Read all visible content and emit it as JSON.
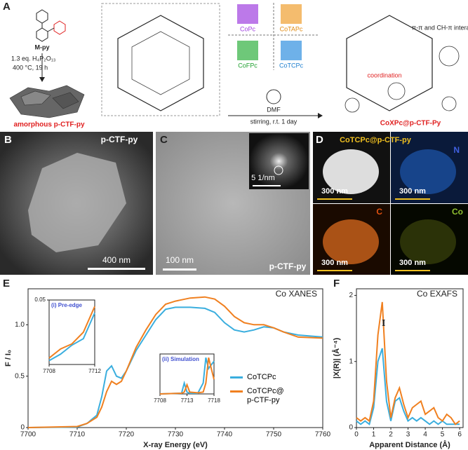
{
  "panel_a": {
    "letter": "A",
    "monomer": "M-py",
    "reagent": "1.3 eq. H₄P₂O₁₃",
    "condition": "400 °C, 19 h",
    "product": "amorphous p-CTF-py",
    "phthalocyanines": [
      "CoPc",
      "CoTAPc",
      "CoFPc",
      "CoTCPc"
    ],
    "solvent": "DMF",
    "stirring": "stirring, r.t. 1 day",
    "interactions": "π-π and CH-π interactions",
    "coordination": "coordination",
    "final": "CoXPc@p-CTF-Py"
  },
  "panel_b": {
    "letter": "B",
    "label": "p-CTF-py",
    "scale": "400 nm"
  },
  "panel_c": {
    "letter": "C",
    "scale": "100 nm",
    "fft_scale": "5 1/nm",
    "label": "p-CTF-py"
  },
  "panel_d": {
    "letter": "D",
    "title": "CoTCPc@p-CTF-py",
    "elements": [
      "N",
      "C",
      "Co"
    ],
    "scales": [
      "300 nm",
      "300 nm",
      "300 nm",
      "300 nm"
    ]
  },
  "panel_e": {
    "letter": "E"
  },
  "panel_f": {
    "letter": "F"
  },
  "chart_data": [
    {
      "type": "line",
      "title": "Co XANES",
      "x_label": "X-ray Energy (eV)",
      "y_label": "F / I₀",
      "x": [
        7700,
        7710,
        7712,
        7714,
        7715,
        7716,
        7717,
        7718,
        7719,
        7720,
        7722,
        7724,
        7726,
        7728,
        7730,
        7733,
        7736,
        7738,
        7740,
        7742,
        7744,
        7746,
        7748,
        7750,
        7752,
        7755,
        7760
      ],
      "series": [
        {
          "name": "CoTCPc",
          "color": "#3aaede",
          "values": [
            0,
            0.005,
            0.04,
            0.12,
            0.3,
            0.55,
            0.6,
            0.5,
            0.48,
            0.55,
            0.75,
            0.9,
            1.05,
            1.15,
            1.17,
            1.17,
            1.16,
            1.12,
            1.02,
            0.95,
            0.93,
            0.95,
            0.98,
            0.97,
            0.93,
            0.9,
            0.88
          ]
        },
        {
          "name": "CoTCPc@\np-CTF-py",
          "color": "#f08020",
          "values": [
            0,
            0.01,
            0.04,
            0.1,
            0.2,
            0.35,
            0.45,
            0.42,
            0.45,
            0.55,
            0.78,
            0.95,
            1.1,
            1.2,
            1.23,
            1.26,
            1.27,
            1.25,
            1.18,
            1.08,
            1.02,
            1.0,
            1.0,
            0.97,
            0.93,
            0.88,
            0.87
          ]
        }
      ],
      "xlim": [
        7700,
        7760
      ],
      "xticks": [
        7700,
        7710,
        7720,
        7730,
        7740,
        7750,
        7760
      ],
      "ylim": [
        0,
        1.35
      ],
      "yticks": [
        0,
        0.5,
        {
          "value": 1,
          "label": "1.0"
        }
      ]
    },
    {
      "type": "line",
      "title": "(i) Pre-edge",
      "x": [
        7708,
        7709,
        7710,
        7711,
        7712
      ],
      "series": [
        {
          "color": "#3aaede",
          "values": [
            0.003,
            0.008,
            0.015,
            0.02,
            0.04
          ]
        },
        {
          "color": "#f08020",
          "values": [
            0.005,
            0.012,
            0.016,
            0.025,
            0.045
          ]
        }
      ],
      "xlim": [
        7708,
        7712
      ],
      "xticks": [
        7708,
        7712
      ],
      "ylim": [
        0,
        0.05
      ],
      "yticks": [
        0.05
      ]
    },
    {
      "type": "line",
      "title": "(ii) Simulation",
      "x": [
        7708,
        7712,
        7712.5,
        7713,
        7713.5,
        7715,
        7716,
        7716.5,
        7717,
        7717.5,
        7718
      ],
      "series": [
        {
          "color": "#3aaede",
          "values": [
            0,
            0.02,
            0.3,
            0.05,
            0.02,
            0.02,
            0.3,
            1,
            0.7,
            0.8,
            0.9
          ]
        },
        {
          "color": "#f08020",
          "values": [
            0,
            0.02,
            0.05,
            0.25,
            0.05,
            0.03,
            0.05,
            0.3,
            1,
            0.7,
            0.4
          ]
        }
      ],
      "xlim": [
        7708,
        7718
      ],
      "xticks": [
        7708,
        7713,
        7718
      ],
      "ylim": [
        0,
        1.1
      ],
      "yticks": []
    },
    {
      "type": "line",
      "title": "Co EXAFS",
      "annotation": "I",
      "x_label": "Apparent Distance (Å)",
      "y_label": "|X(R)| (Å⁻⁴)",
      "x": [
        0,
        0.25,
        0.5,
        0.75,
        1,
        1.25,
        1.5,
        1.75,
        2,
        2.25,
        2.5,
        2.75,
        3,
        3.25,
        3.5,
        3.75,
        4,
        4.25,
        4.5,
        4.75,
        5,
        5.25,
        5.5,
        5.75,
        6
      ],
      "series": [
        {
          "color": "#3aaede",
          "values": [
            0.1,
            0.05,
            0.1,
            0.05,
            0.3,
            1.0,
            1.2,
            0.4,
            0.1,
            0.4,
            0.45,
            0.25,
            0.1,
            0.15,
            0.1,
            0.15,
            0.1,
            0.05,
            0.1,
            0.05,
            0.1,
            0.05,
            0.05,
            0.05,
            0.05
          ]
        },
        {
          "color": "#f08020",
          "values": [
            0.15,
            0.1,
            0.15,
            0.1,
            0.4,
            1.4,
            1.9,
            0.7,
            0.15,
            0.45,
            0.6,
            0.35,
            0.15,
            0.3,
            0.35,
            0.4,
            0.2,
            0.25,
            0.3,
            0.15,
            0.1,
            0.2,
            0.15,
            0.05,
            0.1
          ]
        }
      ],
      "xlim": [
        0,
        6.2
      ],
      "xticks": [
        0,
        1,
        2,
        3,
        4,
        5,
        6
      ],
      "ylim": [
        0,
        2.1
      ],
      "yticks": [
        0,
        1,
        2
      ]
    }
  ]
}
